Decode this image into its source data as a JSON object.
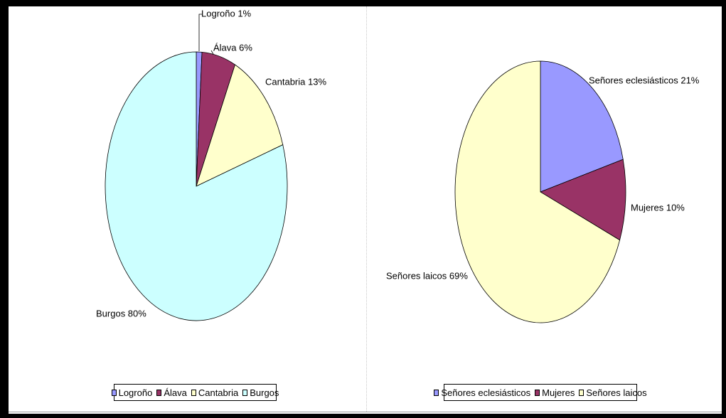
{
  "chart_data": [
    {
      "type": "pie",
      "slices": [
        {
          "label": "Logroño",
          "value": 1,
          "data_label": "Logroño 1%",
          "color": "#9999FF"
        },
        {
          "label": "Álava",
          "value": 6,
          "data_label": "Álava  6%",
          "color": "#993366"
        },
        {
          "label": "Cantabria",
          "value": 13,
          "data_label": "Cantabria 13%",
          "color": "#FFFFCC"
        },
        {
          "label": "Burgos",
          "value": 80,
          "data_label": "Burgos 80%",
          "color": "#CCFFFF"
        }
      ],
      "legend": {
        "position": "bottom"
      }
    },
    {
      "type": "pie",
      "slices": [
        {
          "label": "Señores eclesiásticos",
          "value": 21,
          "data_label": "Señores eclesiásticos 21%",
          "color": "#9999FF"
        },
        {
          "label": "Mujeres",
          "value": 10,
          "data_label": "Mujeres 10%",
          "color": "#993366"
        },
        {
          "label": "Señores laicos",
          "value": 69,
          "data_label": "Señores laicos 69%",
          "color": "#FFFFCC"
        }
      ],
      "legend": {
        "position": "bottom"
      }
    }
  ]
}
